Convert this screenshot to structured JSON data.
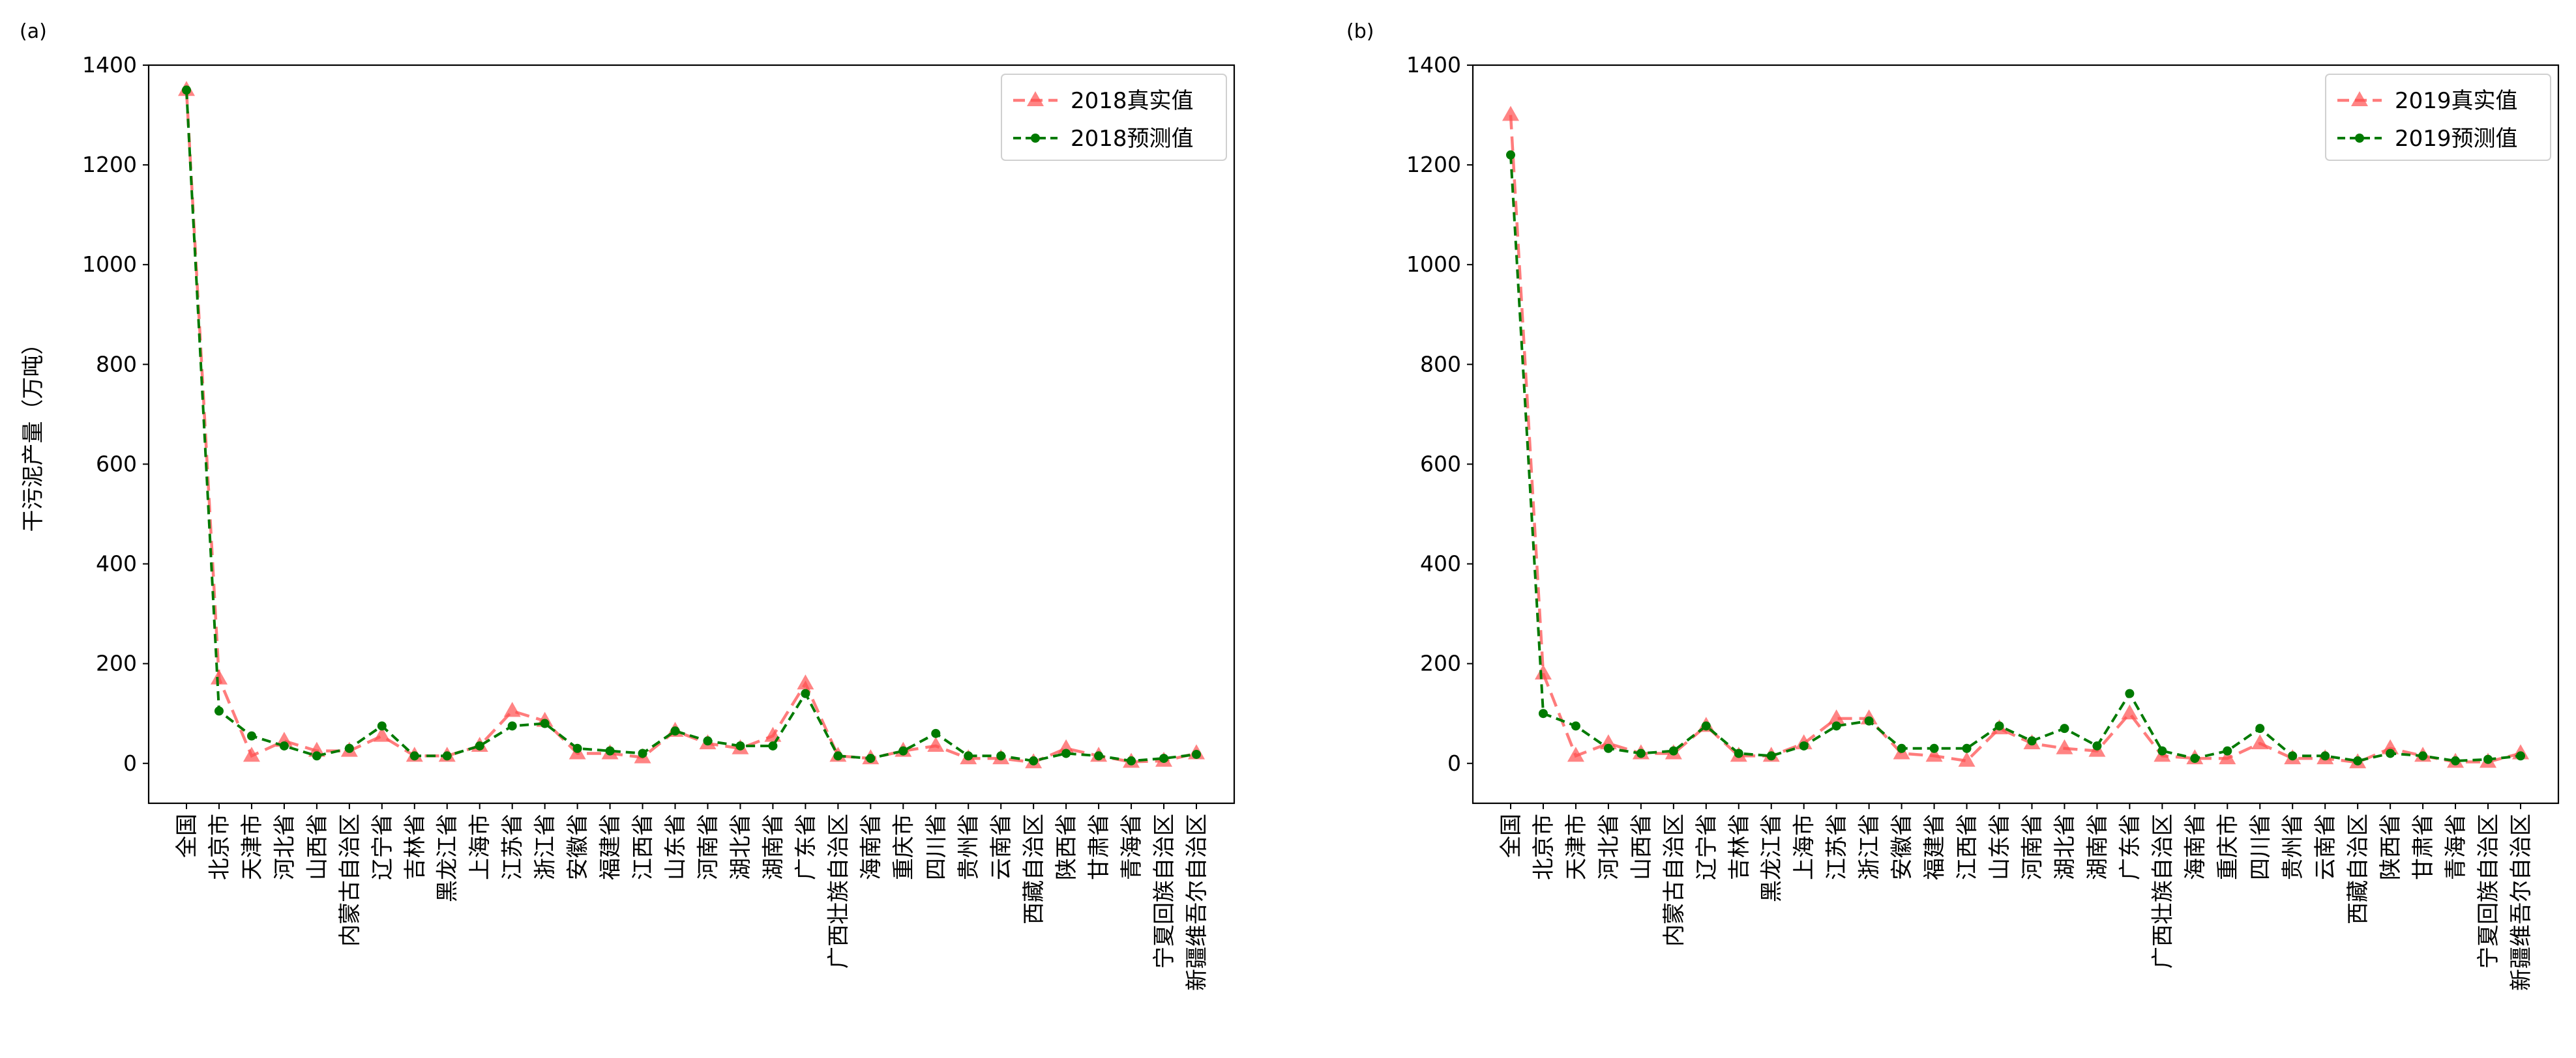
{
  "chart_data": [
    {
      "panel_label": "(a)",
      "type": "line",
      "ylabel": "干污泥产量（万吨）",
      "ylim": [
        -80,
        1400
      ],
      "yticks": [
        0,
        200,
        400,
        600,
        800,
        1000,
        1200,
        1400
      ],
      "grid": false,
      "legend_position": "top-right",
      "categories": [
        "全国",
        "北京市",
        "天津市",
        "河北省",
        "山西省",
        "内蒙古自治区",
        "辽宁省",
        "吉林省",
        "黑龙江省",
        "上海市",
        "江苏省",
        "浙江省",
        "安徽省",
        "福建省",
        "江西省",
        "山东省",
        "河南省",
        "湖北省",
        "湖南省",
        "广东省",
        "广西壮族自治区",
        "海南省",
        "重庆市",
        "四川省",
        "贵州省",
        "云南省",
        "西藏自治区",
        "陕西省",
        "甘肃省",
        "青海省",
        "宁夏回族自治区",
        "新疆维吾尔自治区"
      ],
      "series": [
        {
          "name": "2018真实值",
          "color": "#ff5050",
          "marker": "triangle",
          "dash": "long",
          "values": [
            1350,
            170,
            15,
            45,
            25,
            25,
            55,
            15,
            15,
            35,
            105,
            85,
            20,
            20,
            12,
            65,
            40,
            30,
            55,
            160,
            15,
            10,
            25,
            35,
            10,
            10,
            2,
            30,
            15,
            3,
            5,
            20
          ]
        },
        {
          "name": "2018预测值",
          "color": "#007a00",
          "marker": "circle",
          "dash": "short",
          "values": [
            1350,
            105,
            55,
            35,
            15,
            30,
            75,
            15,
            15,
            35,
            75,
            80,
            30,
            25,
            20,
            65,
            45,
            35,
            35,
            140,
            15,
            10,
            25,
            60,
            15,
            15,
            5,
            20,
            15,
            5,
            10,
            18
          ]
        }
      ]
    },
    {
      "panel_label": "(b)",
      "type": "line",
      "ylabel": "",
      "ylim": [
        -80,
        1400
      ],
      "yticks": [
        0,
        200,
        400,
        600,
        800,
        1000,
        1200,
        1400
      ],
      "grid": false,
      "legend_position": "top-right",
      "categories": [
        "全国",
        "北京市",
        "天津市",
        "河北省",
        "山西省",
        "内蒙古自治区",
        "辽宁省",
        "吉林省",
        "黑龙江省",
        "上海市",
        "江苏省",
        "浙江省",
        "安徽省",
        "福建省",
        "江西省",
        "山东省",
        "河南省",
        "湖北省",
        "湖南省",
        "广东省",
        "广西壮族自治区",
        "海南省",
        "重庆市",
        "四川省",
        "贵州省",
        "云南省",
        "西藏自治区",
        "陕西省",
        "甘肃省",
        "青海省",
        "宁夏回族自治区",
        "新疆维吾尔自治区"
      ],
      "series": [
        {
          "name": "2019真实值",
          "color": "#ff5050",
          "marker": "triangle",
          "dash": "long",
          "values": [
            1300,
            180,
            15,
            40,
            20,
            20,
            75,
            15,
            15,
            40,
            90,
            90,
            20,
            15,
            5,
            70,
            40,
            30,
            25,
            100,
            15,
            10,
            10,
            40,
            10,
            10,
            2,
            30,
            15,
            3,
            3,
            20
          ]
        },
        {
          "name": "2019预测值",
          "color": "#007a00",
          "marker": "circle",
          "dash": "short",
          "values": [
            1220,
            100,
            75,
            30,
            20,
            25,
            75,
            20,
            15,
            35,
            75,
            85,
            30,
            30,
            30,
            75,
            45,
            70,
            35,
            140,
            25,
            10,
            25,
            70,
            15,
            15,
            5,
            20,
            15,
            5,
            8,
            15
          ]
        }
      ]
    }
  ]
}
